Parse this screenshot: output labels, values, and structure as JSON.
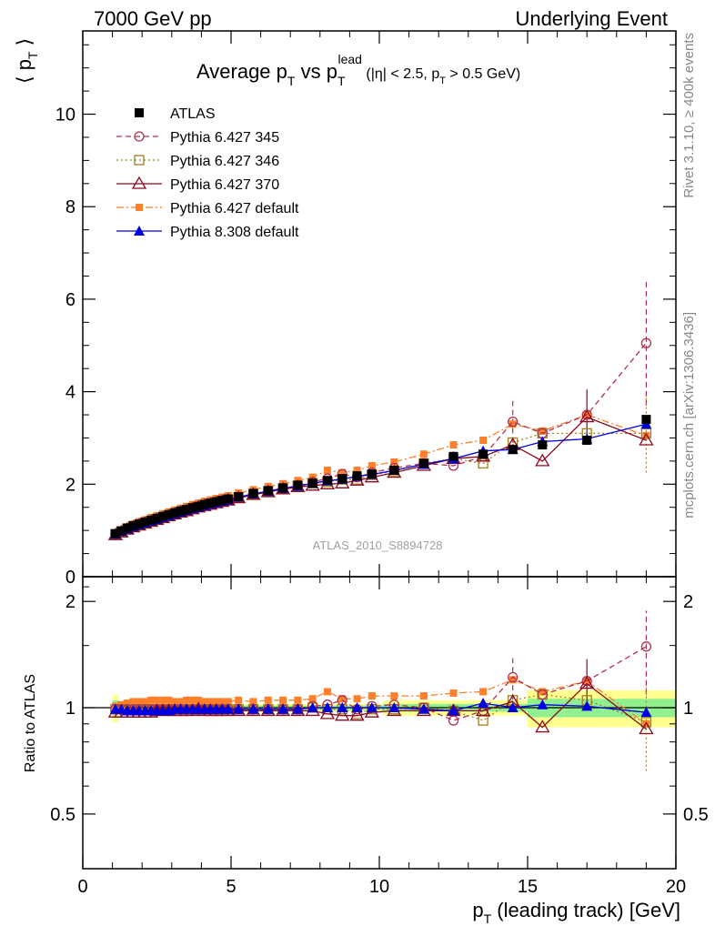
{
  "header": {
    "left": "7000 GeV pp",
    "right": "Underlying Event"
  },
  "side_labels": {
    "top": "Rivet 3.1.10, ≥ 400k events",
    "bottom": "mcplots.cern.ch [arXiv:1306.3436]"
  },
  "watermark": "ATLAS_2010_S8894728",
  "colors": {
    "atlas": "#000000",
    "p345": "#b03050",
    "p346": "#a08020",
    "p370": "#8b0a1e",
    "pdef": "#ff7f2a",
    "p8": "#0000e0",
    "band_inner": "#90f090",
    "band_outer": "#ffff90"
  },
  "chart_data": [
    {
      "type": "scatter",
      "title_parts": {
        "main": "Average p",
        "sub1": "T",
        "mid": " vs p",
        "sub2": "T",
        "sup2": "lead",
        "cut1": " (|η| < 2.5, p",
        "cut_sub": "T",
        "cut2": " > 0.5 GeV)"
      },
      "ylabel": "⟨ p",
      "ylabel_sub": "T",
      "ylabel_close": " ⟩",
      "xlim": [
        0,
        20
      ],
      "ylim": [
        0,
        11.8
      ],
      "yticks": [
        0,
        2,
        4,
        6,
        8,
        10
      ],
      "ytick_labels": [
        "0",
        "2",
        "4",
        "6",
        "8",
        "10"
      ],
      "legend_position": "top-left",
      "x": [
        1.1,
        1.3,
        1.5,
        1.7,
        1.9,
        2.1,
        2.3,
        2.5,
        2.7,
        2.9,
        3.1,
        3.3,
        3.5,
        3.7,
        3.9,
        4.1,
        4.3,
        4.5,
        4.7,
        4.9,
        5.25,
        5.75,
        6.25,
        6.75,
        7.25,
        7.75,
        8.25,
        8.75,
        9.25,
        9.75,
        10.5,
        11.5,
        12.5,
        13.5,
        14.5,
        15.5,
        17.0,
        19.0
      ],
      "series": [
        {
          "name": "ATLAS",
          "marker": "square-filled",
          "color": "#000000",
          "values": [
            0.93,
            0.99,
            1.05,
            1.1,
            1.14,
            1.18,
            1.22,
            1.26,
            1.3,
            1.34,
            1.38,
            1.42,
            1.45,
            1.49,
            1.52,
            1.56,
            1.59,
            1.62,
            1.65,
            1.68,
            1.73,
            1.8,
            1.86,
            1.92,
            1.98,
            2.02,
            2.08,
            2.12,
            2.18,
            2.22,
            2.3,
            2.45,
            2.6,
            2.65,
            2.75,
            2.85,
            2.95,
            3.4
          ]
        },
        {
          "name": "Pythia 6.427 345",
          "marker": "circle-open",
          "color": "#b03050",
          "values": [
            0.92,
            0.98,
            1.04,
            1.09,
            1.13,
            1.17,
            1.21,
            1.25,
            1.29,
            1.33,
            1.37,
            1.41,
            1.44,
            1.48,
            1.51,
            1.55,
            1.58,
            1.61,
            1.64,
            1.67,
            1.72,
            1.79,
            1.85,
            1.91,
            1.96,
            2.05,
            2.12,
            2.22,
            2.15,
            2.25,
            2.35,
            2.45,
            2.4,
            2.6,
            3.35,
            3.1,
            3.5,
            5.05
          ]
        },
        {
          "name": "Pythia 6.427 346",
          "marker": "square-open",
          "color": "#a08020",
          "values": [
            0.92,
            0.98,
            1.04,
            1.09,
            1.13,
            1.17,
            1.21,
            1.25,
            1.29,
            1.33,
            1.37,
            1.41,
            1.44,
            1.48,
            1.51,
            1.55,
            1.58,
            1.61,
            1.64,
            1.67,
            1.72,
            1.79,
            1.85,
            1.91,
            1.96,
            2.02,
            2.05,
            2.1,
            2.1,
            2.2,
            2.28,
            2.45,
            2.55,
            2.45,
            2.9,
            3.1,
            3.1,
            3.1
          ]
        },
        {
          "name": "Pythia 6.427 370",
          "marker": "triangle-open",
          "color": "#8b0a1e",
          "values": [
            0.9,
            0.96,
            1.02,
            1.07,
            1.11,
            1.15,
            1.19,
            1.23,
            1.27,
            1.31,
            1.35,
            1.39,
            1.42,
            1.46,
            1.5,
            1.53,
            1.56,
            1.59,
            1.62,
            1.65,
            1.7,
            1.77,
            1.83,
            1.89,
            1.94,
            1.97,
            2.0,
            2.02,
            2.08,
            2.15,
            2.25,
            2.4,
            2.55,
            2.6,
            2.85,
            2.5,
            3.45,
            2.95
          ]
        },
        {
          "name": "Pythia 6.427 default",
          "marker": "square-filled-small",
          "color": "#ff7f2a",
          "values": [
            0.94,
            1.01,
            1.08,
            1.14,
            1.19,
            1.23,
            1.28,
            1.32,
            1.36,
            1.4,
            1.44,
            1.48,
            1.52,
            1.56,
            1.59,
            1.63,
            1.66,
            1.69,
            1.72,
            1.75,
            1.81,
            1.88,
            1.95,
            2.01,
            2.08,
            2.15,
            2.3,
            2.25,
            2.3,
            2.4,
            2.48,
            2.65,
            2.85,
            2.95,
            3.3,
            3.15,
            3.5,
            3.05
          ]
        },
        {
          "name": "Pythia 8.308 default",
          "marker": "triangle-filled",
          "color": "#0000e0",
          "values": [
            0.92,
            0.98,
            1.03,
            1.08,
            1.12,
            1.16,
            1.2,
            1.24,
            1.28,
            1.32,
            1.36,
            1.4,
            1.43,
            1.47,
            1.5,
            1.54,
            1.57,
            1.6,
            1.63,
            1.66,
            1.72,
            1.79,
            1.85,
            1.91,
            1.96,
            2.02,
            2.07,
            2.11,
            2.17,
            2.21,
            2.3,
            2.43,
            2.55,
            2.72,
            2.75,
            2.92,
            2.98,
            3.3
          ]
        }
      ],
      "error_bars": [
        {
          "series": "Pythia 6.427 345",
          "x": 19.0,
          "low": 3.7,
          "high": 6.4
        },
        {
          "series": "Pythia 6.427 345",
          "x": 14.5,
          "low": 2.9,
          "high": 3.8
        },
        {
          "series": "Pythia 6.427 370",
          "x": 17.0,
          "low": 2.9,
          "high": 4.05
        },
        {
          "series": "Pythia 6.427 346",
          "x": 19.0,
          "low": 2.25,
          "high": 3.9
        }
      ]
    },
    {
      "type": "scatter",
      "ylabel": "Ratio to ATLAS",
      "xlabel_main": "p",
      "xlabel_sub": "T",
      "xlabel_rest": " (leading track) [GeV]",
      "xlim": [
        0,
        20
      ],
      "ylim": [
        0.35,
        2.35
      ],
      "log_y": true,
      "yticks": [
        0.5,
        1,
        2
      ],
      "ytick_labels": [
        "0.5",
        "1",
        "2"
      ],
      "xticks": [
        0,
        5,
        10,
        15,
        20
      ],
      "xtick_labels": [
        "0",
        "5",
        "10",
        "15",
        "20"
      ],
      "reference_line": 1,
      "bands_note": "ATLAS uncertainty bands (green inner, yellow outer)",
      "series": [
        {
          "name": "Pythia 6.427 345",
          "values": [
            0.99,
            0.99,
            0.99,
            0.99,
            0.99,
            0.99,
            0.99,
            0.99,
            0.99,
            0.99,
            0.99,
            0.99,
            0.99,
            0.99,
            0.99,
            0.99,
            0.99,
            0.99,
            0.99,
            0.99,
            0.99,
            0.99,
            0.99,
            0.99,
            0.99,
            1.01,
            1.02,
            1.05,
            0.99,
            1.01,
            1.02,
            1.0,
            0.92,
            0.98,
            1.22,
            1.09,
            1.19,
            1.49
          ]
        },
        {
          "name": "Pythia 6.427 346",
          "values": [
            0.99,
            0.99,
            0.99,
            0.99,
            0.99,
            0.99,
            0.99,
            0.99,
            0.99,
            0.99,
            0.99,
            0.99,
            0.99,
            0.99,
            0.99,
            0.99,
            0.99,
            0.99,
            0.99,
            0.99,
            0.99,
            0.99,
            0.99,
            0.99,
            0.99,
            1.0,
            0.99,
            0.99,
            0.96,
            0.99,
            0.99,
            1.0,
            0.98,
            0.92,
            1.05,
            1.09,
            1.05,
            0.91
          ]
        },
        {
          "name": "Pythia 6.427 370",
          "values": [
            0.97,
            0.97,
            0.97,
            0.97,
            0.97,
            0.97,
            0.97,
            0.98,
            0.98,
            0.98,
            0.98,
            0.98,
            0.98,
            0.98,
            0.99,
            0.98,
            0.98,
            0.98,
            0.98,
            0.98,
            0.98,
            0.98,
            0.98,
            0.98,
            0.98,
            0.98,
            0.96,
            0.95,
            0.95,
            0.97,
            0.98,
            0.98,
            0.98,
            0.98,
            1.04,
            0.88,
            1.17,
            0.87
          ]
        },
        {
          "name": "Pythia 6.427 default",
          "values": [
            1.01,
            1.02,
            1.03,
            1.04,
            1.04,
            1.04,
            1.05,
            1.05,
            1.05,
            1.05,
            1.04,
            1.04,
            1.05,
            1.05,
            1.05,
            1.04,
            1.04,
            1.04,
            1.04,
            1.04,
            1.05,
            1.04,
            1.05,
            1.05,
            1.05,
            1.06,
            1.11,
            1.06,
            1.06,
            1.08,
            1.08,
            1.08,
            1.1,
            1.11,
            1.2,
            1.11,
            1.19,
            0.9
          ]
        },
        {
          "name": "Pythia 8.308 default",
          "values": [
            0.99,
            0.99,
            0.98,
            0.98,
            0.98,
            0.98,
            0.98,
            0.98,
            0.98,
            0.98,
            0.99,
            0.99,
            0.99,
            0.99,
            0.99,
            0.99,
            0.99,
            0.99,
            0.99,
            0.99,
            0.99,
            0.99,
            0.99,
            0.99,
            0.99,
            1.0,
            1.0,
            1.0,
            1.0,
            1.0,
            1.0,
            0.99,
            0.98,
            1.03,
            1.0,
            1.02,
            1.01,
            0.97
          ]
        }
      ]
    }
  ]
}
